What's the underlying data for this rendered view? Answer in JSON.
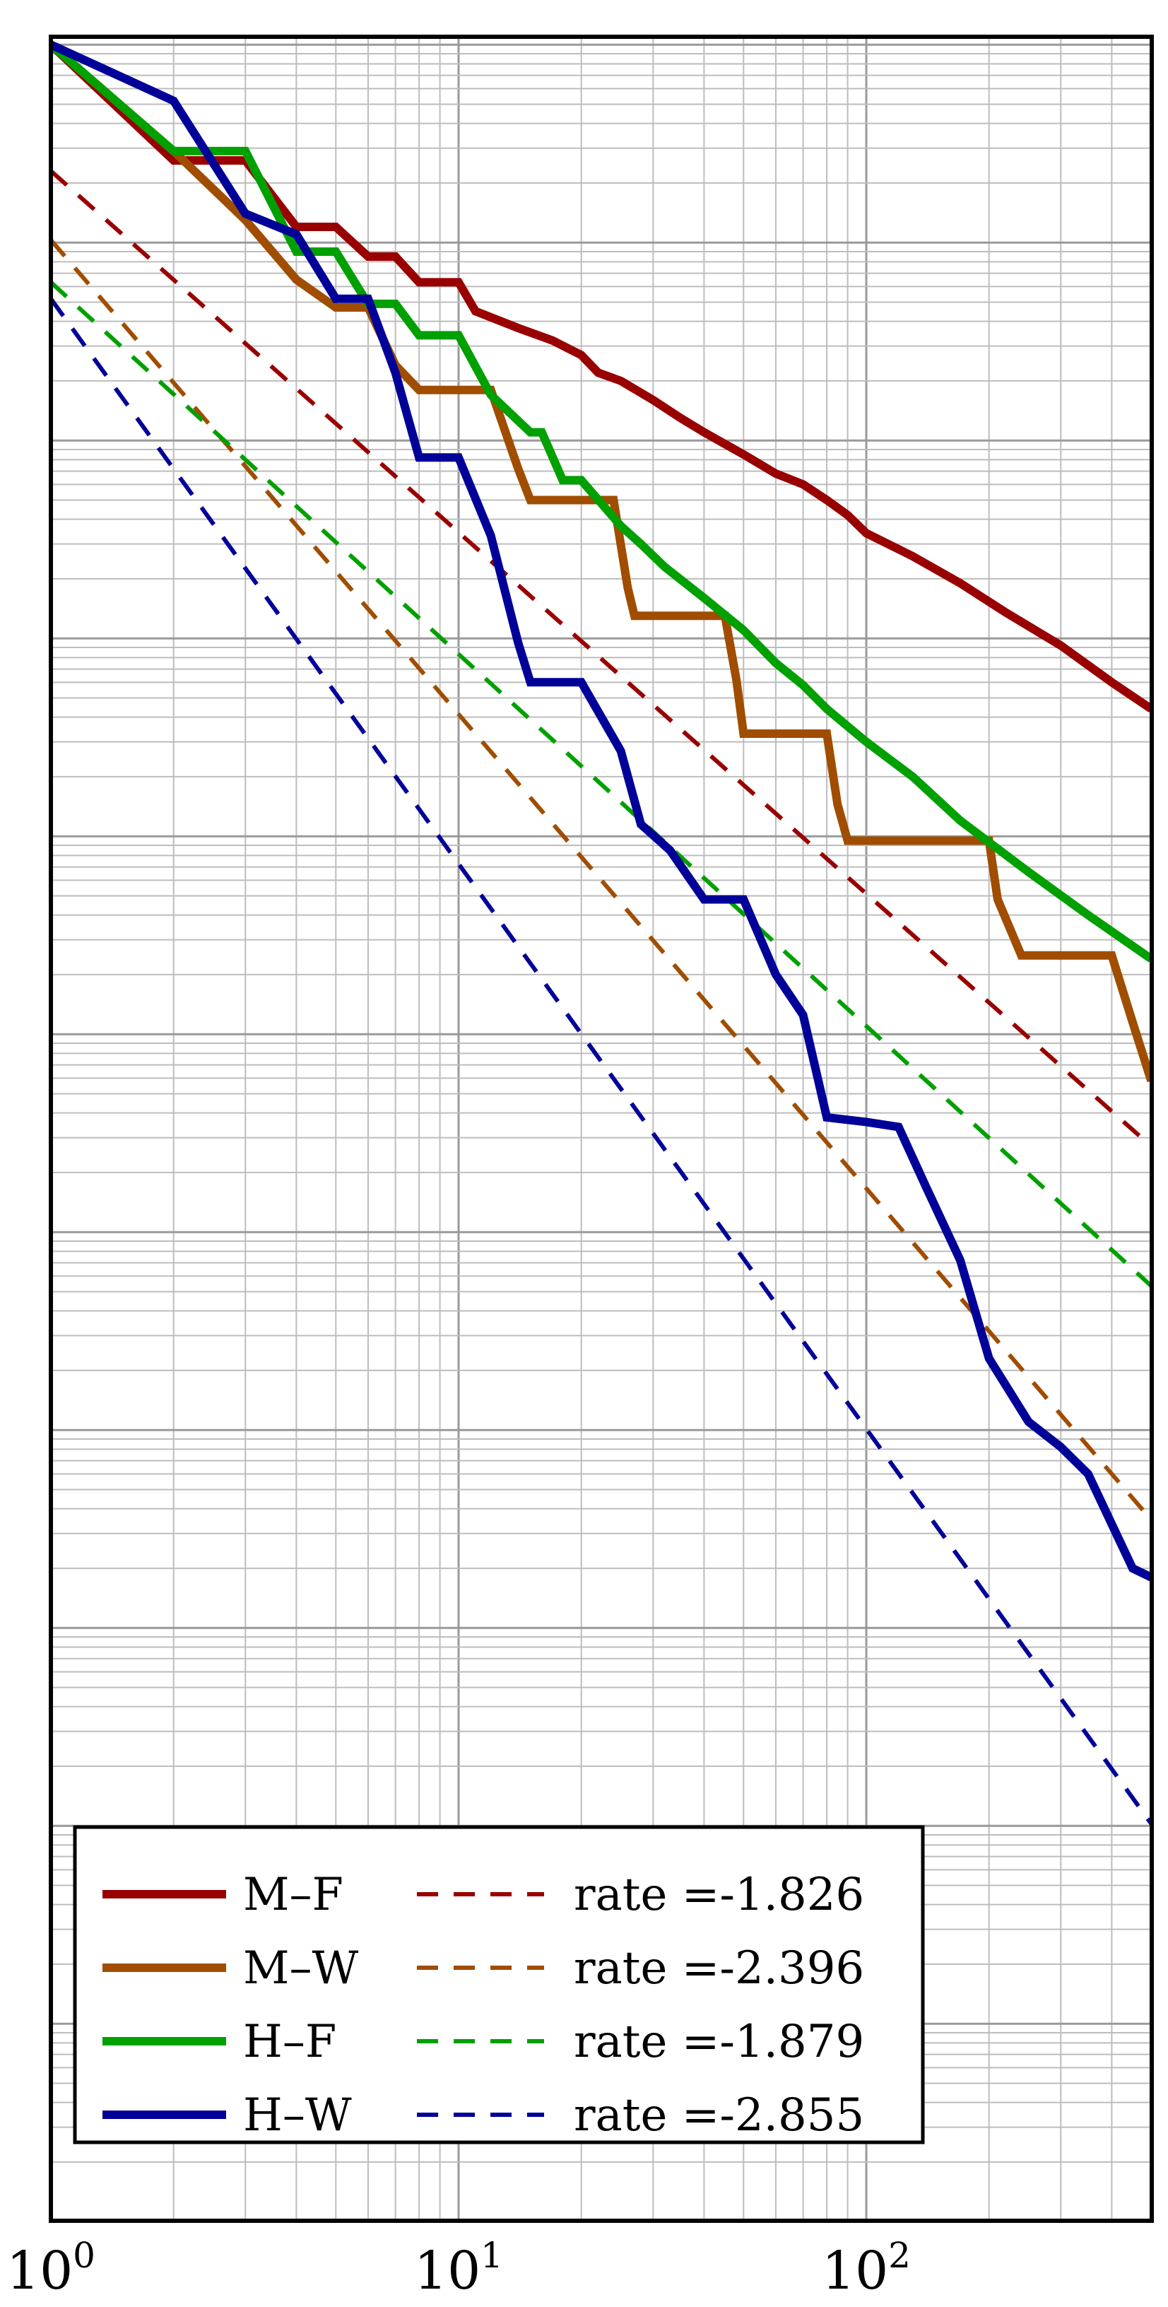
{
  "chart_data": {
    "type": "line",
    "x_scale": "log",
    "y_scale": "log",
    "grid": true,
    "legend_position": "bottom-left",
    "xlim": [
      1,
      500
    ],
    "x_ticks": [
      {
        "value": 1,
        "base": "10",
        "exp": "0"
      },
      {
        "value": 10,
        "base": "10",
        "exp": "1"
      },
      {
        "value": 100,
        "base": "10",
        "exp": "2"
      }
    ],
    "colors": {
      "M-F": "#990000",
      "M-W": "#a04d00",
      "H-F": "#00a000",
      "H-W": "#000099"
    },
    "series": [
      {
        "name": "M–F",
        "color": "#990000",
        "points": [
          [
            1,
            1
          ],
          [
            2,
            0.26
          ],
          [
            3,
            0.26
          ],
          [
            4,
            0.12
          ],
          [
            5,
            0.12
          ],
          [
            6,
            0.085
          ],
          [
            7,
            0.085
          ],
          [
            8,
            0.063
          ],
          [
            10,
            0.063
          ],
          [
            11,
            0.045
          ],
          [
            14,
            0.037
          ],
          [
            17,
            0.032
          ],
          [
            20,
            0.027
          ],
          [
            22,
            0.022
          ],
          [
            25,
            0.02
          ],
          [
            30,
            0.016
          ],
          [
            35,
            0.013
          ],
          [
            40,
            0.011
          ],
          [
            50,
            0.0085
          ],
          [
            60,
            0.0068
          ],
          [
            70,
            0.006
          ],
          [
            80,
            0.005
          ],
          [
            90,
            0.0042
          ],
          [
            100,
            0.0034
          ],
          [
            130,
            0.0026
          ],
          [
            170,
            0.0019
          ],
          [
            220,
            0.00135
          ],
          [
            300,
            0.00092
          ],
          [
            400,
            0.0006
          ],
          [
            500,
            0.00044
          ]
        ],
        "fit_rate": "-1.826"
      },
      {
        "name": "M–W",
        "color": "#a04d00",
        "points": [
          [
            1,
            1
          ],
          [
            2,
            0.29
          ],
          [
            3,
            0.13
          ],
          [
            4,
            0.065
          ],
          [
            5,
            0.047
          ],
          [
            6,
            0.047
          ],
          [
            7,
            0.024
          ],
          [
            8,
            0.018
          ],
          [
            12,
            0.018
          ],
          [
            14,
            0.0072
          ],
          [
            15,
            0.005
          ],
          [
            24,
            0.005
          ],
          [
            26,
            0.0018
          ],
          [
            27,
            0.0013
          ],
          [
            45,
            0.0013
          ],
          [
            48,
            0.00062
          ],
          [
            50,
            0.00033
          ],
          [
            80,
            0.00033
          ],
          [
            85,
            0.000145
          ],
          [
            90,
            9.5e-05
          ],
          [
            110,
            9.5e-05
          ],
          [
            200,
            9.5e-05
          ],
          [
            210,
            4.8e-05
          ],
          [
            240,
            2.5e-05
          ],
          [
            400,
            2.5e-05
          ],
          [
            450,
            1.15e-05
          ],
          [
            500,
            5.8e-06
          ]
        ],
        "fit_rate": "-2.396"
      },
      {
        "name": "H–F",
        "color": "#00a000",
        "points": [
          [
            1,
            1
          ],
          [
            2,
            0.29
          ],
          [
            3,
            0.29
          ],
          [
            4,
            0.09
          ],
          [
            5,
            0.09
          ],
          [
            6,
            0.049
          ],
          [
            7,
            0.049
          ],
          [
            8,
            0.034
          ],
          [
            10,
            0.034
          ],
          [
            12,
            0.017
          ],
          [
            15,
            0.011
          ],
          [
            16,
            0.011
          ],
          [
            18,
            0.0063
          ],
          [
            20,
            0.0063
          ],
          [
            25,
            0.0037
          ],
          [
            28,
            0.003
          ],
          [
            32,
            0.0023
          ],
          [
            40,
            0.0016
          ],
          [
            50,
            0.0011
          ],
          [
            60,
            0.00075
          ],
          [
            70,
            0.00058
          ],
          [
            80,
            0.00044
          ],
          [
            100,
            0.0003
          ],
          [
            130,
            0.0002
          ],
          [
            170,
            0.00012
          ],
          [
            250,
            6.6e-05
          ],
          [
            350,
            4e-05
          ],
          [
            500,
            2.4e-05
          ]
        ],
        "fit_rate": "-1.879"
      },
      {
        "name": "H–W",
        "color": "#000099",
        "points": [
          [
            1,
            1
          ],
          [
            2,
            0.52
          ],
          [
            3,
            0.14
          ],
          [
            4,
            0.11
          ],
          [
            5,
            0.052
          ],
          [
            6,
            0.052
          ],
          [
            7,
            0.022
          ],
          [
            8,
            0.0082
          ],
          [
            10,
            0.0082
          ],
          [
            12,
            0.0033
          ],
          [
            14,
            0.00095
          ],
          [
            15,
            0.0006
          ],
          [
            20,
            0.0006
          ],
          [
            25,
            0.00027
          ],
          [
            28,
            0.000115
          ],
          [
            33,
            8.5e-05
          ],
          [
            40,
            4.8e-05
          ],
          [
            50,
            4.8e-05
          ],
          [
            60,
            2e-05
          ],
          [
            70,
            1.25e-05
          ],
          [
            80,
            3.8e-06
          ],
          [
            100,
            3.6e-06
          ],
          [
            120,
            3.4e-06
          ],
          [
            140,
            1.7e-06
          ],
          [
            170,
            7.2e-07
          ],
          [
            200,
            2.3e-07
          ],
          [
            250,
            1.1e-07
          ],
          [
            300,
            8.2e-08
          ],
          [
            350,
            6e-08
          ],
          [
            450,
            2e-08
          ],
          [
            500,
            1.8e-08
          ]
        ],
        "fit_rate": "-2.855"
      }
    ],
    "fits": [
      {
        "series": "M–F",
        "color": "#990000",
        "rate": -1.826,
        "y_at_x1": 0.23
      },
      {
        "series": "M–W",
        "color": "#a04d00",
        "rate": -2.396,
        "y_at_x1": 0.103
      },
      {
        "series": "H–F",
        "color": "#00a000",
        "rate": -1.879,
        "y_at_x1": 0.063
      },
      {
        "series": "H–W",
        "color": "#000099",
        "rate": -2.855,
        "y_at_x1": 0.052
      }
    ],
    "legend": [
      {
        "label": "M–F",
        "fit_label": "rate =-1.826",
        "color": "#990000"
      },
      {
        "label": "M–W",
        "fit_label": "rate =-2.396",
        "color": "#a04d00"
      },
      {
        "label": "H–F",
        "fit_label": "rate =-1.879",
        "color": "#00a000"
      },
      {
        "label": "H–W",
        "fit_label": "rate =-2.855",
        "color": "#000099"
      }
    ]
  }
}
